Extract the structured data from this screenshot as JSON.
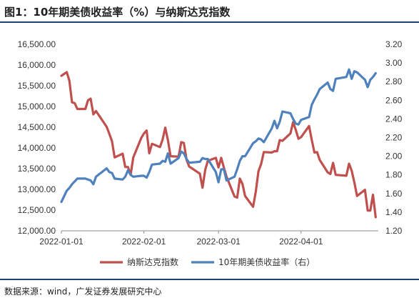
{
  "header": {
    "title": "图1：10年期美债收益率（%）与纳斯达克指数"
  },
  "footer": {
    "source": "数据来源：wind，广发证券发展研究中心"
  },
  "chart_data": {
    "type": "line",
    "x_ticks": [
      "2022-01-01",
      "2022-02-01",
      "2022-03-01",
      "2022-04-01"
    ],
    "y_left": {
      "lim": [
        12000,
        16500
      ],
      "ticks": [
        "12,000.00",
        "12,500.00",
        "13,000.00",
        "13,500.00",
        "14,000.00",
        "14,500.00",
        "15,000.00",
        "15,500.00",
        "16,000.00",
        "16,500.00"
      ]
    },
    "y_right": {
      "lim": [
        1.2,
        3.2
      ],
      "ticks": [
        "1.20",
        "1.40",
        "1.60",
        "1.80",
        "2.00",
        "2.20",
        "2.40",
        "2.60",
        "2.80",
        "3.00",
        "3.20"
      ]
    },
    "x_range": [
      "2022-01-01",
      "2022-04-30"
    ],
    "grid": false,
    "legend_position": "bottom",
    "series": [
      {
        "name": "纳斯达克指数",
        "axis": "left",
        "color": "#C0504D",
        "x": [
          "2022-01-01",
          "2022-01-03",
          "2022-01-04",
          "2022-01-05",
          "2022-01-06",
          "2022-01-07",
          "2022-01-10",
          "2022-01-11",
          "2022-01-12",
          "2022-01-13",
          "2022-01-14",
          "2022-01-18",
          "2022-01-19",
          "2022-01-20",
          "2022-01-21",
          "2022-01-24",
          "2022-01-25",
          "2022-01-26",
          "2022-01-27",
          "2022-01-28",
          "2022-01-31",
          "2022-02-01",
          "2022-02-02",
          "2022-02-03",
          "2022-02-04",
          "2022-02-07",
          "2022-02-08",
          "2022-02-09",
          "2022-02-10",
          "2022-02-11",
          "2022-02-14",
          "2022-02-15",
          "2022-02-16",
          "2022-02-17",
          "2022-02-18",
          "2022-02-22",
          "2022-02-23",
          "2022-02-24",
          "2022-02-25",
          "2022-02-28",
          "2022-03-01",
          "2022-03-02",
          "2022-03-03",
          "2022-03-04",
          "2022-03-07",
          "2022-03-08",
          "2022-03-09",
          "2022-03-10",
          "2022-03-11",
          "2022-03-14",
          "2022-03-15",
          "2022-03-16",
          "2022-03-17",
          "2022-03-18",
          "2022-03-21",
          "2022-03-22",
          "2022-03-23",
          "2022-03-24",
          "2022-03-25",
          "2022-03-28",
          "2022-03-29",
          "2022-03-30",
          "2022-03-31",
          "2022-04-01",
          "2022-04-04",
          "2022-04-05",
          "2022-04-06",
          "2022-04-07",
          "2022-04-08",
          "2022-04-11",
          "2022-04-12",
          "2022-04-13",
          "2022-04-14",
          "2022-04-18",
          "2022-04-19",
          "2022-04-20",
          "2022-04-21",
          "2022-04-22",
          "2022-04-25",
          "2022-04-26",
          "2022-04-27",
          "2022-04-28",
          "2022-04-29"
        ],
        "values": [
          15740,
          15830,
          15620,
          15100,
          15080,
          14940,
          14940,
          15150,
          15190,
          14810,
          14890,
          14510,
          14340,
          14160,
          13770,
          13860,
          13540,
          13540,
          13350,
          13770,
          14240,
          14350,
          14420,
          13870,
          14100,
          14020,
          14200,
          14490,
          14190,
          13800,
          13790,
          14140,
          14120,
          13710,
          13550,
          13380,
          13040,
          13470,
          13690,
          13760,
          13530,
          13760,
          13530,
          13310,
          12830,
          12800,
          13260,
          13130,
          12840,
          12580,
          12950,
          13440,
          13610,
          13900,
          13890,
          13920,
          13920,
          14190,
          14170,
          14350,
          14620,
          14440,
          14220,
          14260,
          14530,
          14200,
          13890,
          13900,
          13710,
          13410,
          13370,
          13640,
          13350,
          13330,
          13620,
          13450,
          13170,
          12840,
          12990,
          12490,
          12490,
          12870,
          12330
        ]
      },
      {
        "name": "10年期美债收益率（右）",
        "axis": "right",
        "color": "#4F81BD",
        "x": [
          "2022-01-01",
          "2022-01-03",
          "2022-01-04",
          "2022-01-05",
          "2022-01-06",
          "2022-01-07",
          "2022-01-10",
          "2022-01-11",
          "2022-01-12",
          "2022-01-13",
          "2022-01-14",
          "2022-01-18",
          "2022-01-19",
          "2022-01-20",
          "2022-01-21",
          "2022-01-24",
          "2022-01-25",
          "2022-01-26",
          "2022-01-27",
          "2022-01-28",
          "2022-01-31",
          "2022-02-01",
          "2022-02-02",
          "2022-02-03",
          "2022-02-04",
          "2022-02-07",
          "2022-02-08",
          "2022-02-09",
          "2022-02-10",
          "2022-02-11",
          "2022-02-14",
          "2022-02-15",
          "2022-02-16",
          "2022-02-17",
          "2022-02-18",
          "2022-02-22",
          "2022-02-23",
          "2022-02-24",
          "2022-02-25",
          "2022-02-28",
          "2022-03-01",
          "2022-03-02",
          "2022-03-03",
          "2022-03-04",
          "2022-03-07",
          "2022-03-08",
          "2022-03-09",
          "2022-03-10",
          "2022-03-11",
          "2022-03-14",
          "2022-03-15",
          "2022-03-16",
          "2022-03-17",
          "2022-03-18",
          "2022-03-21",
          "2022-03-22",
          "2022-03-23",
          "2022-03-24",
          "2022-03-25",
          "2022-03-28",
          "2022-03-29",
          "2022-03-30",
          "2022-03-31",
          "2022-04-01",
          "2022-04-04",
          "2022-04-05",
          "2022-04-06",
          "2022-04-07",
          "2022-04-08",
          "2022-04-11",
          "2022-04-12",
          "2022-04-13",
          "2022-04-14",
          "2022-04-18",
          "2022-04-19",
          "2022-04-20",
          "2022-04-21",
          "2022-04-22",
          "2022-04-25",
          "2022-04-26",
          "2022-04-27",
          "2022-04-28",
          "2022-04-29"
        ],
        "values": [
          1.51,
          1.63,
          1.66,
          1.7,
          1.73,
          1.76,
          1.76,
          1.75,
          1.74,
          1.7,
          1.78,
          1.87,
          1.83,
          1.82,
          1.76,
          1.75,
          1.78,
          1.85,
          1.8,
          1.78,
          1.79,
          1.79,
          1.77,
          1.83,
          1.91,
          1.92,
          1.95,
          1.94,
          2.03,
          1.92,
          1.98,
          2.05,
          2.03,
          1.97,
          1.93,
          1.94,
          1.98,
          1.97,
          1.97,
          1.83,
          1.72,
          1.86,
          1.86,
          1.74,
          1.78,
          1.86,
          1.95,
          2.0,
          2.0,
          2.14,
          2.16,
          2.19,
          2.18,
          2.15,
          2.3,
          2.38,
          2.3,
          2.37,
          2.48,
          2.46,
          2.4,
          2.35,
          2.34,
          2.39,
          2.42,
          2.55,
          2.61,
          2.66,
          2.72,
          2.79,
          2.72,
          2.7,
          2.83,
          2.85,
          2.93,
          2.83,
          2.91,
          2.9,
          2.82,
          2.74,
          2.82,
          2.85,
          2.89
        ]
      }
    ]
  }
}
